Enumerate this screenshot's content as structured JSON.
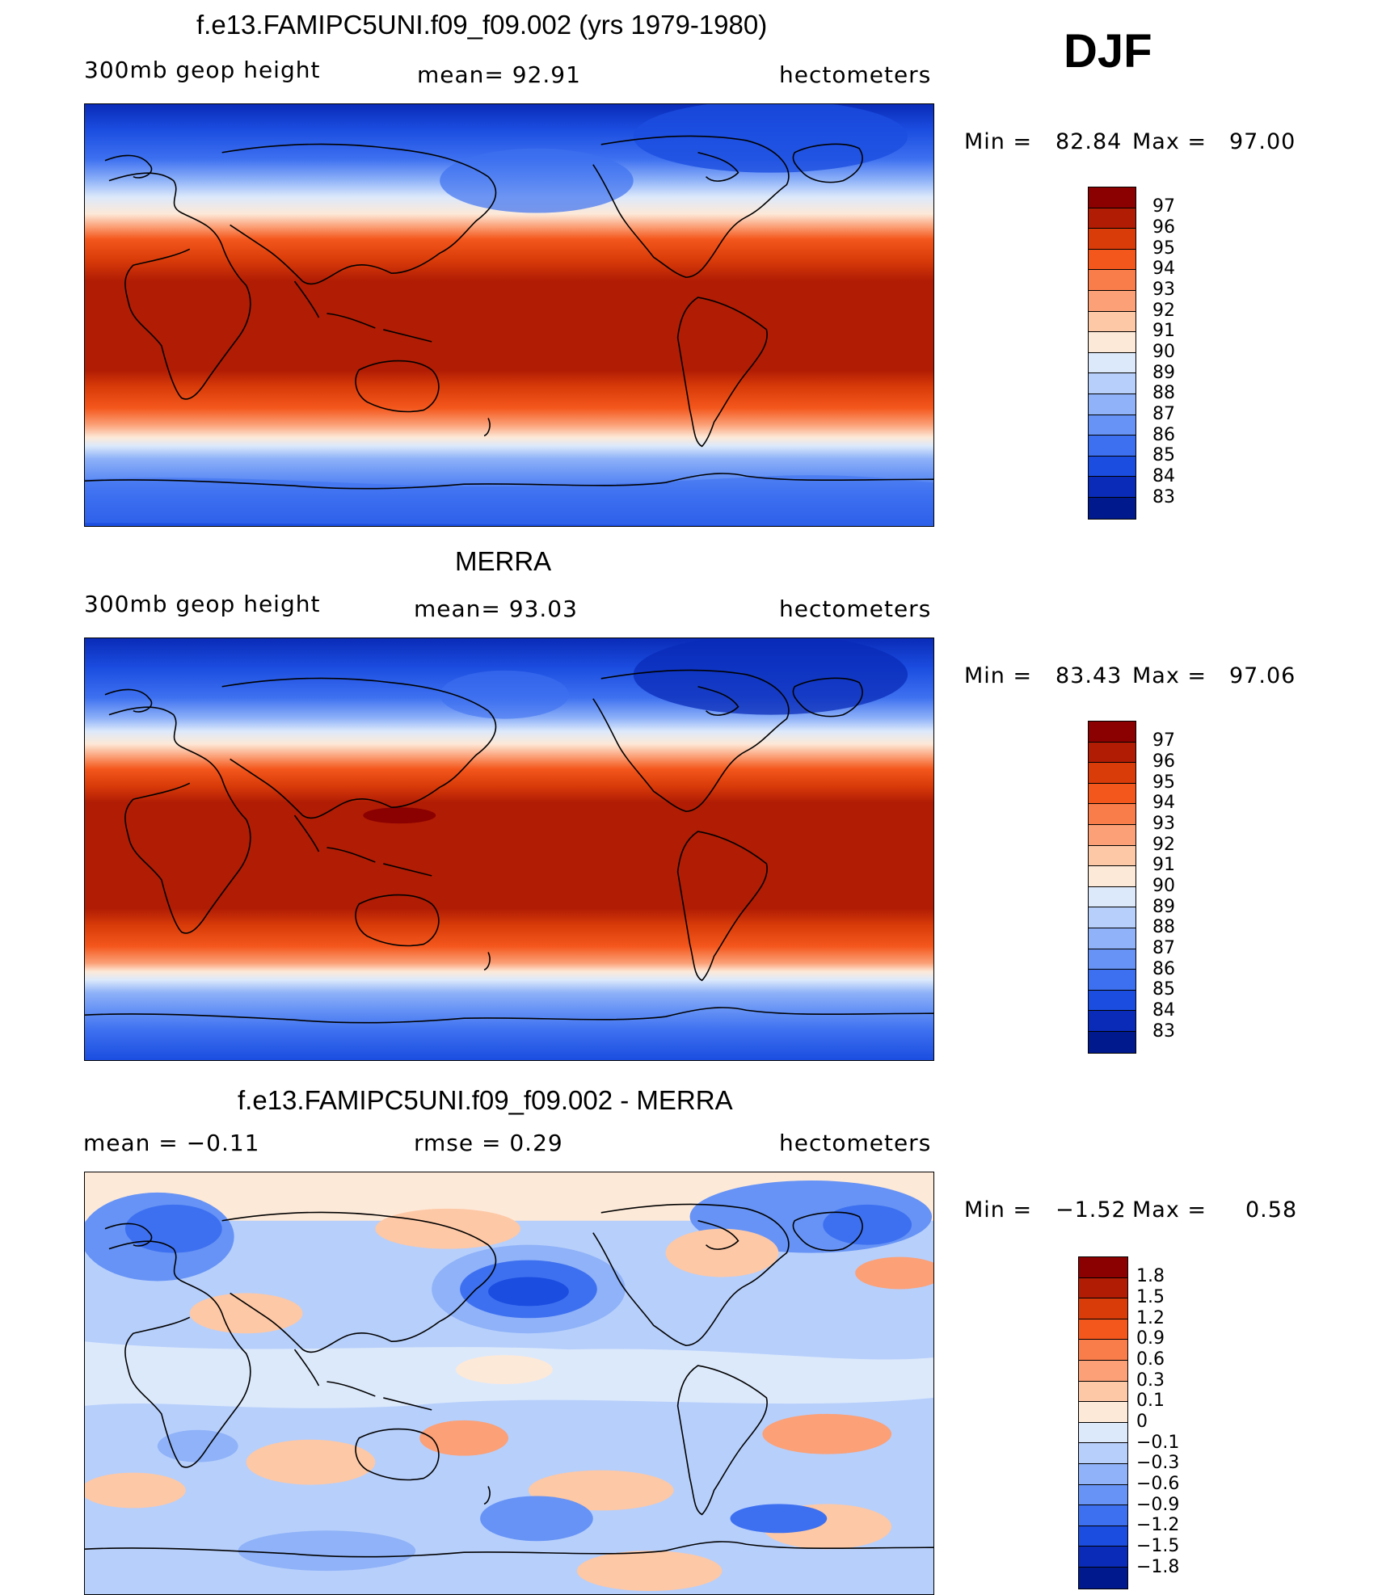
{
  "season": "DJF",
  "panels": [
    {
      "title": "f.e13.FAMIPC5UNI.f09_f09.002 (yrs 1979-1980)",
      "left": "300mb  geop  height",
      "center": "mean=   92.91",
      "right": "hectometers",
      "min_label": "Min  =",
      "min_value": "82.84",
      "max_label": "Max  =",
      "max_value": "97.00",
      "colorbar_labels": [
        "97",
        "96",
        "95",
        "94",
        "93",
        "92",
        "91",
        "90",
        "89",
        "88",
        "87",
        "86",
        "85",
        "84",
        "83"
      ]
    },
    {
      "title": "MERRA",
      "left": "300mb  geop  height",
      "center": "mean=   93.03",
      "right": "hectometers",
      "min_label": "Min  =",
      "min_value": "83.43",
      "max_label": "Max  =",
      "max_value": "97.06",
      "colorbar_labels": [
        "97",
        "96",
        "95",
        "94",
        "93",
        "92",
        "91",
        "90",
        "89",
        "88",
        "87",
        "86",
        "85",
        "84",
        "83"
      ]
    },
    {
      "title": "f.e13.FAMIPC5UNI.f09_f09.002 - MERRA",
      "left": "mean  =    −0.11",
      "center": "rmse  =     0.29",
      "right": "hectometers",
      "min_label": "Min  =",
      "min_value": "−1.52",
      "max_label": "Max  =",
      "max_value": "0.58",
      "colorbar_labels": [
        "1.8",
        "1.5",
        "1.2",
        "0.9",
        "0.6",
        "0.3",
        "0.1",
        "0",
        "−0.1",
        "−0.3",
        "−0.6",
        "−0.9",
        "−1.2",
        "−1.5",
        "−1.8"
      ]
    }
  ],
  "colors": {
    "geop_scale": [
      "#8b0000",
      "#b01c04",
      "#d93b09",
      "#f4571c",
      "#f97c4b",
      "#fba077",
      "#fdc8a6",
      "#fde9d8",
      "#dce9fb",
      "#b7cffb",
      "#8fb2f8",
      "#6693f5",
      "#3d70f0",
      "#1b4de0",
      "#0a2bb8",
      "#00198c"
    ],
    "diff_scale": [
      "#8b0000",
      "#b01c04",
      "#d93b09",
      "#f4571c",
      "#f97c4b",
      "#fba077",
      "#fdc8a6",
      "#fde9d8",
      "#dce9fb",
      "#b7cffb",
      "#8fb2f8",
      "#6693f5",
      "#3d70f0",
      "#1b4de0",
      "#0a2bb8",
      "#00198c"
    ]
  }
}
